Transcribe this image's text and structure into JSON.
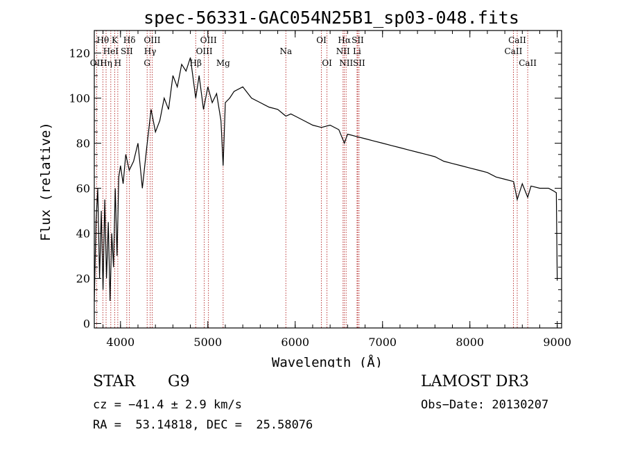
{
  "chart_data": {
    "type": "line",
    "title": "spec-56331-GAC054N25B1_sp03-048.fits",
    "xlabel": "Wavelength (Å)",
    "ylabel": "Flux (relative)",
    "xlim": [
      3700,
      9050
    ],
    "ylim": [
      -2,
      130
    ],
    "xticks": [
      4000,
      5000,
      6000,
      7000,
      8000,
      9000
    ],
    "yticks": [
      0,
      20,
      40,
      60,
      80,
      100,
      120
    ],
    "grid": false,
    "series": [
      {
        "x": [
          3700,
          3720,
          3740,
          3760,
          3780,
          3800,
          3820,
          3840,
          3860,
          3880,
          3900,
          3920,
          3940,
          3960,
          3980,
          4000,
          4030,
          4060,
          4100,
          4150,
          4200,
          4250,
          4300,
          4350,
          4400,
          4450,
          4500,
          4550,
          4600,
          4650,
          4700,
          4750,
          4800,
          4861,
          4900,
          4950,
          5000,
          5050,
          5100,
          5150,
          5175,
          5200,
          5250,
          5300,
          5400,
          5500,
          5600,
          5700,
          5800,
          5893,
          5950,
          6000,
          6100,
          6200,
          6300,
          6400,
          6500,
          6563,
          6600,
          6700,
          6800,
          6900,
          7000,
          7100,
          7200,
          7300,
          7400,
          7500,
          7600,
          7700,
          7800,
          7900,
          8000,
          8100,
          8200,
          8300,
          8400,
          8500,
          8542,
          8600,
          8662,
          8700,
          8800,
          8900,
          8950,
          8990,
          9000
        ],
        "y": [
          10,
          45,
          60,
          20,
          50,
          15,
          55,
          20,
          45,
          10,
          40,
          25,
          60,
          30,
          65,
          70,
          62,
          75,
          68,
          72,
          80,
          60,
          78,
          95,
          85,
          90,
          100,
          95,
          110,
          105,
          115,
          112,
          118,
          100,
          110,
          95,
          105,
          98,
          102,
          90,
          70,
          98,
          100,
          103,
          105,
          100,
          98,
          96,
          95,
          92,
          93,
          92,
          90,
          88,
          87,
          88,
          86,
          80,
          84,
          83,
          82,
          81,
          80,
          79,
          78,
          77,
          76,
          75,
          74,
          72,
          71,
          70,
          69,
          68,
          67,
          65,
          64,
          63,
          55,
          62,
          56,
          61,
          60,
          60,
          59,
          58,
          19
        ]
      }
    ],
    "lines": [
      {
        "label": "Hδ",
        "x": 4102,
        "row": 1
      },
      {
        "label": "Hγ",
        "x": 4340,
        "row": 2
      },
      {
        "label": "OII",
        "x": 3727,
        "row": 3
      },
      {
        "label": "Hθ",
        "x": 3798,
        "row": 1
      },
      {
        "label": "Hη",
        "x": 3835,
        "row": 3
      },
      {
        "label": "HeI",
        "x": 3889,
        "row": 2
      },
      {
        "label": "K",
        "x": 3934,
        "row": 1
      },
      {
        "label": "H",
        "x": 3969,
        "row": 3
      },
      {
        "label": "SII",
        "x": 4072,
        "row": 2
      },
      {
        "label": "G",
        "x": 4305,
        "row": 3
      },
      {
        "label": "OIII",
        "x": 4363,
        "row": 1
      },
      {
        "label": "Hβ",
        "x": 4861,
        "row": 3
      },
      {
        "label": "OIII",
        "x": 4959,
        "row": 2
      },
      {
        "label": "OIII",
        "x": 5007,
        "row": 1
      },
      {
        "label": "Mg",
        "x": 5175,
        "row": 3
      },
      {
        "label": "Na",
        "x": 5893,
        "row": 2
      },
      {
        "label": "OI",
        "x": 6300,
        "row": 1
      },
      {
        "label": "OI",
        "x": 6364,
        "row": 3
      },
      {
        "label": "Hα",
        "x": 6563,
        "row": 1
      },
      {
        "label": "NII",
        "x": 6548,
        "row": 2
      },
      {
        "label": "NII",
        "x": 6583,
        "row": 3
      },
      {
        "label": "SII",
        "x": 6716,
        "row": 1
      },
      {
        "label": "Li",
        "x": 6708,
        "row": 2
      },
      {
        "label": "SII",
        "x": 6731,
        "row": 3
      },
      {
        "label": "CaII",
        "x": 8498,
        "row": 2
      },
      {
        "label": "CaII",
        "x": 8542,
        "row": 1
      },
      {
        "label": "CaII",
        "x": 8662,
        "row": 3
      }
    ]
  },
  "info": {
    "object_type": "STAR",
    "subclass": "G9",
    "survey": "LAMOST DR3",
    "redshift": "cz = −41.4 ± 2.9 km/s",
    "obs_date": "Obs−Date: 20130207",
    "coords": "RA =  53.14818, DEC =  25.58076"
  },
  "colors": {
    "spectrum": "#000000",
    "line_markers": "#b22222",
    "axes": "#000000"
  }
}
